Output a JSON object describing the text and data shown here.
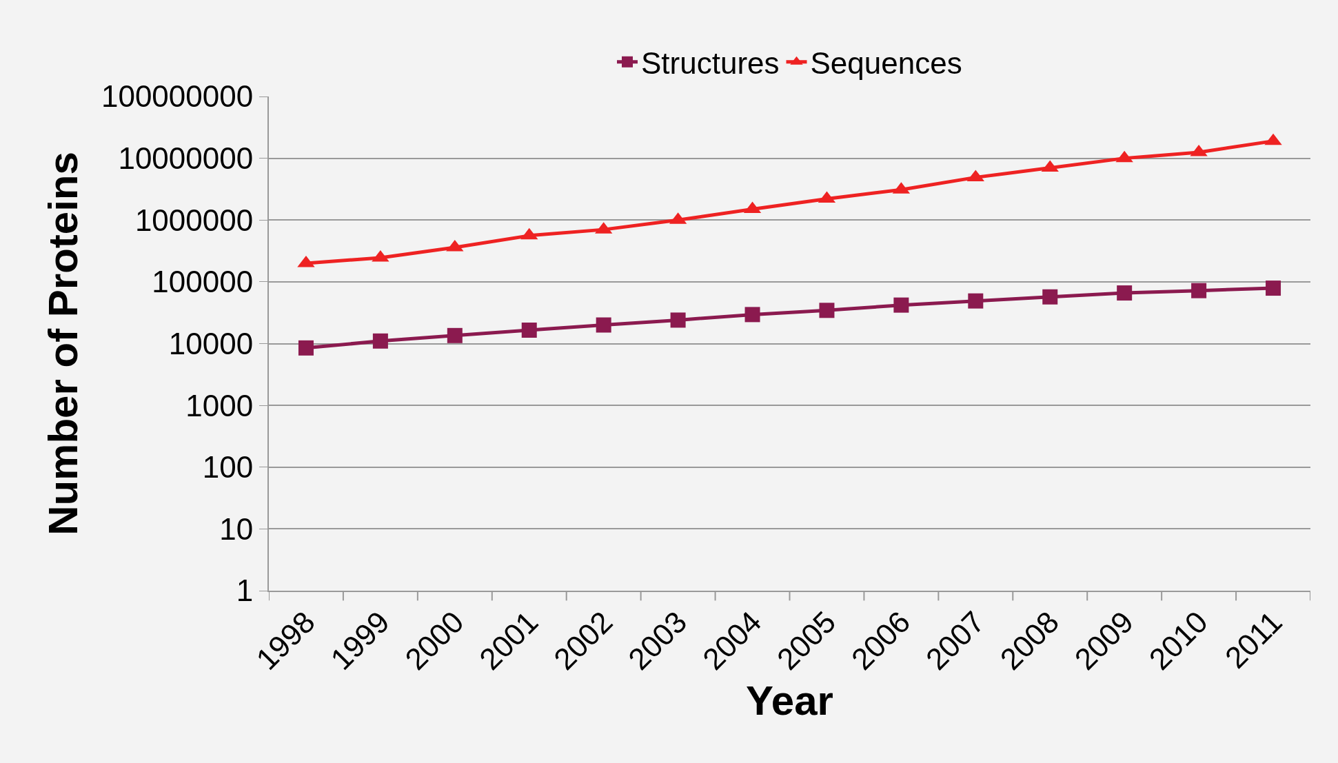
{
  "chart_data": {
    "type": "line",
    "xlabel": "Year",
    "ylabel": "Number of Proteins",
    "categories": [
      "1998",
      "1999",
      "2000",
      "2001",
      "2002",
      "2003",
      "2004",
      "2005",
      "2006",
      "2007",
      "2008",
      "2009",
      "2010",
      "2011"
    ],
    "series": [
      {
        "name": "Structures",
        "color": "#8b1a4f",
        "marker": "square",
        "values": [
          8500,
          11000,
          13500,
          16500,
          20000,
          24000,
          29500,
          34500,
          42000,
          49000,
          57000,
          66000,
          72000,
          79000
        ]
      },
      {
        "name": "Sequences",
        "color": "#ee2222",
        "marker": "triangle",
        "values": [
          200000,
          245000,
          360000,
          560000,
          700000,
          1000000,
          1500000,
          2200000,
          3100000,
          4900000,
          7000000,
          10000000,
          12500000,
          19000000
        ]
      }
    ],
    "log": "y",
    "ylim": [
      1,
      100000000
    ],
    "yticks": [
      1,
      10,
      100,
      1000,
      10000,
      100000,
      1000000,
      10000000,
      100000000
    ],
    "grid": "y",
    "legend": "top"
  }
}
